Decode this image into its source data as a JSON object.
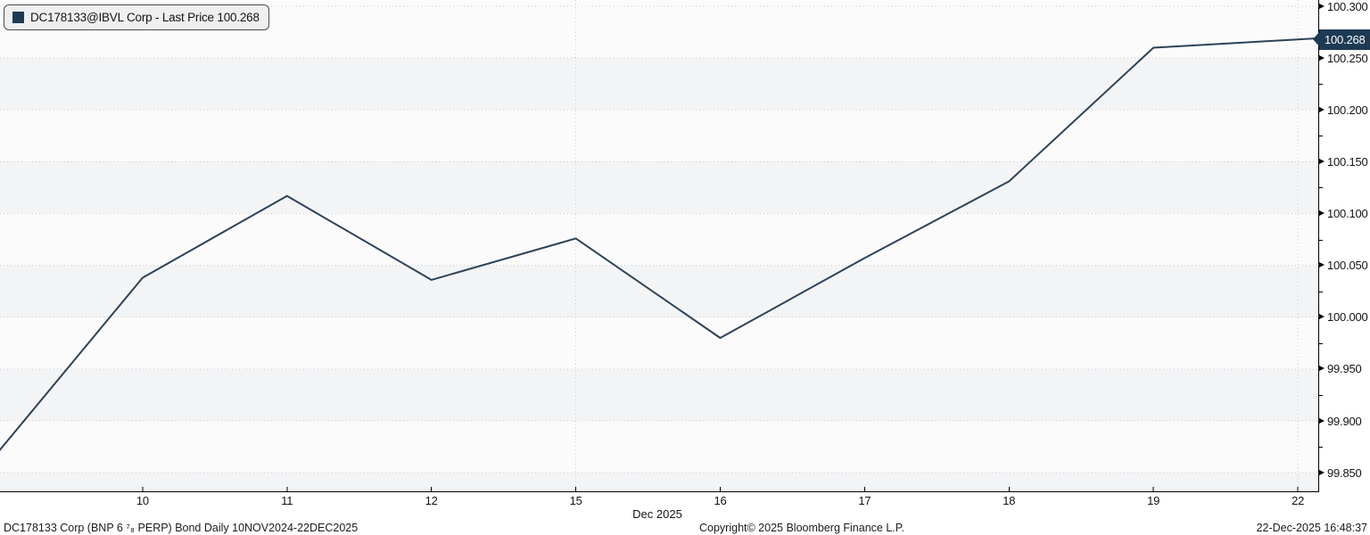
{
  "legend": {
    "label": "DC178133@IBVL Corp - Last Price 100.268"
  },
  "last_price_badge": "100.268",
  "footer": {
    "left": "DC178133 Corp (BNP 6 ⁷₈ PERP) Bond Daily 10NOV2024-22DEC2025",
    "copyright": "Copyright© 2025 Bloomberg Finance L.P.",
    "timestamp": "22-Dec-2025 16:48:37"
  },
  "colors": {
    "line": "#2d4257",
    "badge_bg": "#1d3a55",
    "legend_swatch": "#1d3a55",
    "band_white": "#fbfbfc",
    "band_gray": "#f3f4f5",
    "gridline": "#c9cacc",
    "axis": "#000000"
  },
  "chart_data": {
    "type": "line",
    "title": "DC178133@IBVL Corp - Last Price 100.268",
    "series": [
      {
        "name": "DC178133@IBVL Corp - Last Price",
        "values": [
          99.87,
          100.038,
          100.117,
          100.036,
          100.076,
          99.98,
          100.057,
          100.131,
          100.26,
          100.268
        ]
      }
    ],
    "x": [
      "Dec 9",
      "Dec 10",
      "Dec 11",
      "Dec 12",
      "Dec 15",
      "Dec 16",
      "Dec 17",
      "Dec 18",
      "Dec 19",
      "Dec 22"
    ],
    "x_tick_labels": [
      "10",
      "11",
      "12",
      "15",
      "16",
      "17",
      "18",
      "19",
      "22"
    ],
    "labeled_tick_indices": [
      1,
      2,
      3,
      4,
      5,
      6,
      7,
      8,
      9
    ],
    "vertical_gridline_indices": [
      4,
      9
    ],
    "x_month": "Dec 2025",
    "y_tick_labels": [
      "100.300",
      "100.250",
      "100.200",
      "100.150",
      "100.100",
      "100.050",
      "100.000",
      "99.950",
      "99.900",
      "99.850"
    ],
    "ylim": [
      99.832,
      100.306
    ],
    "last_price": 100.268,
    "legend_position": "top-left",
    "grid": "dotted horizontal at major ticks; dotted vertical at week starts (Dec 15, Dec 22)"
  }
}
